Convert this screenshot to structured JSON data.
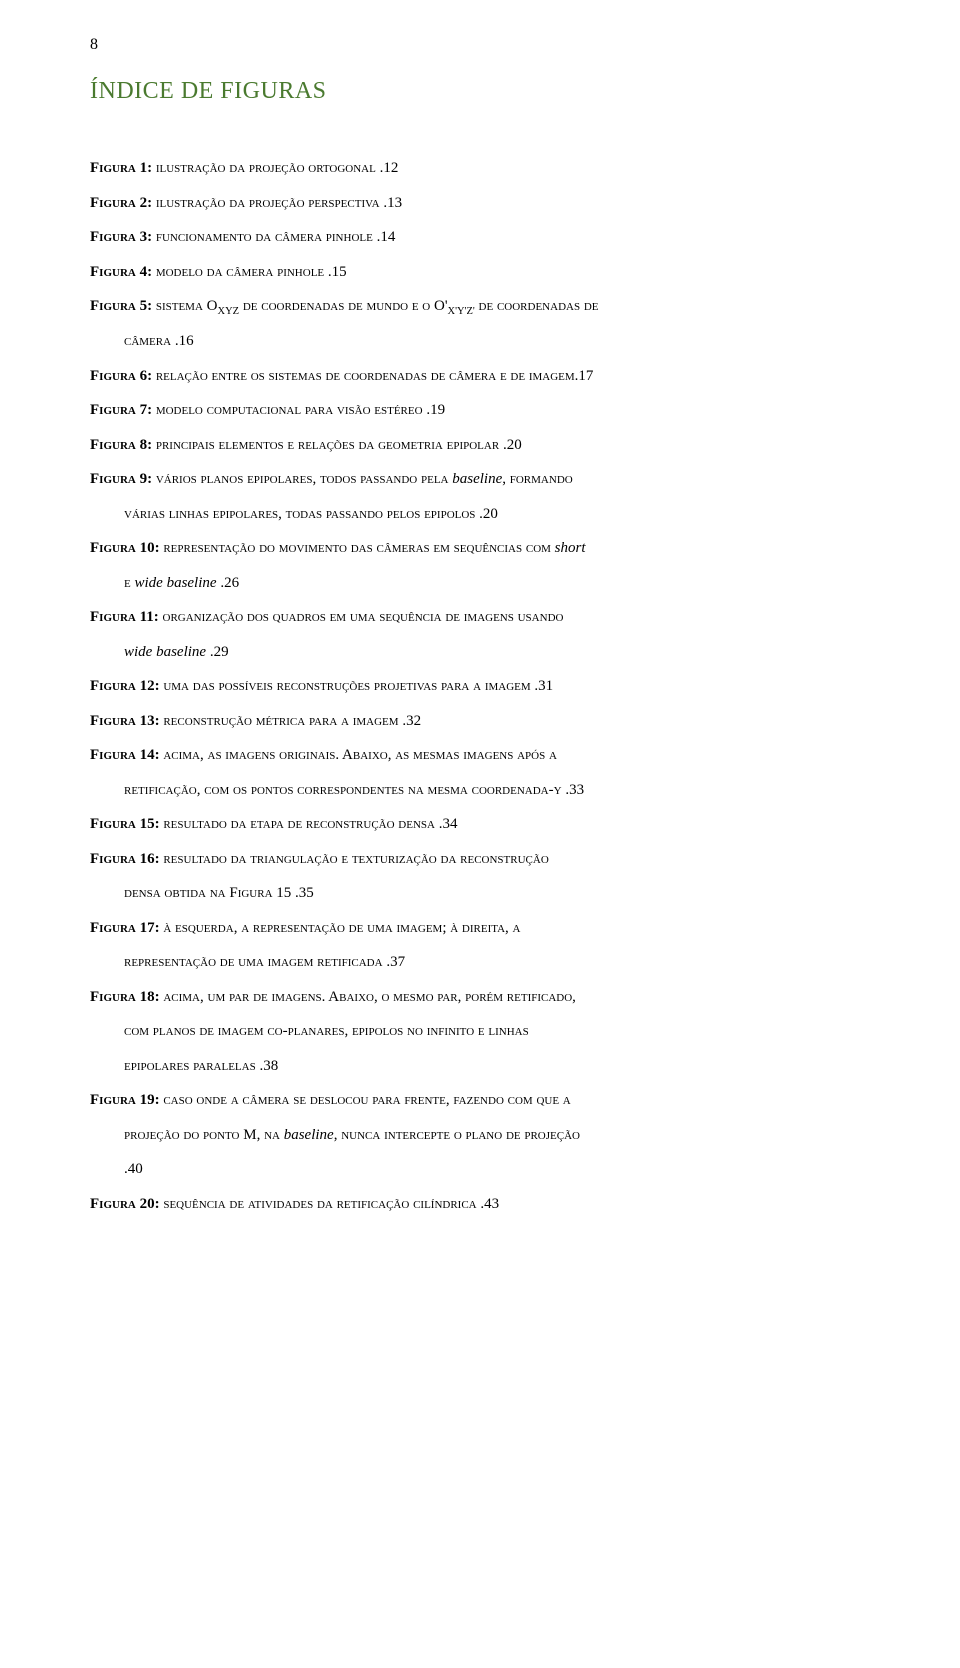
{
  "page_number": "8",
  "title": "ÍNDICE DE FIGURAS",
  "colors": {
    "title": "#4a7a2f",
    "text": "#000000",
    "background": "#ffffff"
  },
  "entries": [
    {
      "label": "Figura 1:",
      "desc": " ilustração da projeção ortogonal",
      "pg": "12"
    },
    {
      "label": "Figura 2:",
      "desc": " ilustração da projeção perspectiva",
      "pg": "13"
    },
    {
      "label": "Figura 3:",
      "desc": " funcionamento da câmera pinhole",
      "pg": "14"
    },
    {
      "label": "Figura 4:",
      "desc": " modelo da câmera pinhole",
      "pg": "15"
    },
    {
      "label": "Figura 5:",
      "desc_pre": " sistema O",
      "sub1": "xyz",
      "desc_mid": " de coordenadas de mundo e o O'",
      "sub2": "x'y'z'",
      "desc_post": " de coordenadas de",
      "cont": "câmera",
      "pg": "16"
    },
    {
      "label": "Figura 6:",
      "desc": " relação entre os sistemas de coordenadas de câmera e de imagem",
      "pg": "17",
      "nodots": true
    },
    {
      "label": "Figura 7:",
      "desc": " modelo computacional para visão estéreo",
      "pg": "19"
    },
    {
      "label": "Figura 8:",
      "desc": " principais elementos e relações da geometria epipolar",
      "pg": "20"
    },
    {
      "label": "Figura 9:",
      "desc_pre": " vários planos epipolares, todos passando pela ",
      "italic1": "baseline",
      "desc_post": ", formando",
      "cont": "várias linhas epipolares, todas passando pelos epipolos",
      "pg": "20"
    },
    {
      "label": "Figura 10:",
      "desc_pre": " representação do movimento das câmeras em sequências com ",
      "italic1": "short",
      "cont_pre": "e ",
      "cont_italic": "wide baseline",
      "pg": "26"
    },
    {
      "label": "Figura 11:",
      "desc": " organização dos quadros em uma sequência de imagens usando",
      "cont_italic": "wide baseline",
      "pg": "29"
    },
    {
      "label": "Figura 12:",
      "desc": " uma das possíveis reconstruções projetivas para a imagem",
      "pg": "31"
    },
    {
      "label": "Figura 13:",
      "desc": " reconstrução métrica para a imagem",
      "pg": "32"
    },
    {
      "label": "Figura 14:",
      "desc": " acima, as imagens originais. Abaixo, as mesmas imagens após a",
      "cont": "retificação, com os pontos correspondentes na mesma coordenada-y",
      "pg": "33"
    },
    {
      "label": "Figura 15:",
      "desc": " resultado da etapa de reconstrução densa",
      "pg": "34"
    },
    {
      "label": "Figura 16:",
      "desc": " resultado da triangulação e texturização da reconstrução",
      "cont": "densa obtida na Figura 15",
      "pg": "35"
    },
    {
      "label": "Figura 17:",
      "desc": " à esquerda, a representação de uma imagem; à direita, a",
      "cont": "representação de uma imagem retificada",
      "pg": "37"
    },
    {
      "label": "Figura 18:",
      "desc": " acima, um par de imagens. Abaixo, o mesmo par, porém retificado,",
      "cont": "com planos de imagem co-planares, epipolos no infinito e linhas",
      "cont2": "epipolares paralelas",
      "pg": "38"
    },
    {
      "label": "Figura 19:",
      "desc": " caso onde a câmera se deslocou para frente, fazendo com que a",
      "cont_pre": "projeção do ponto M, na ",
      "cont_italic": "baseline",
      "cont_post": ", nunca intercepte o plano de projeção",
      "cont2_empty": true,
      "pg": "40"
    },
    {
      "label": "Figura 20:",
      "desc": " sequência de atividades da retificação cilíndrica",
      "pg": "43"
    }
  ]
}
